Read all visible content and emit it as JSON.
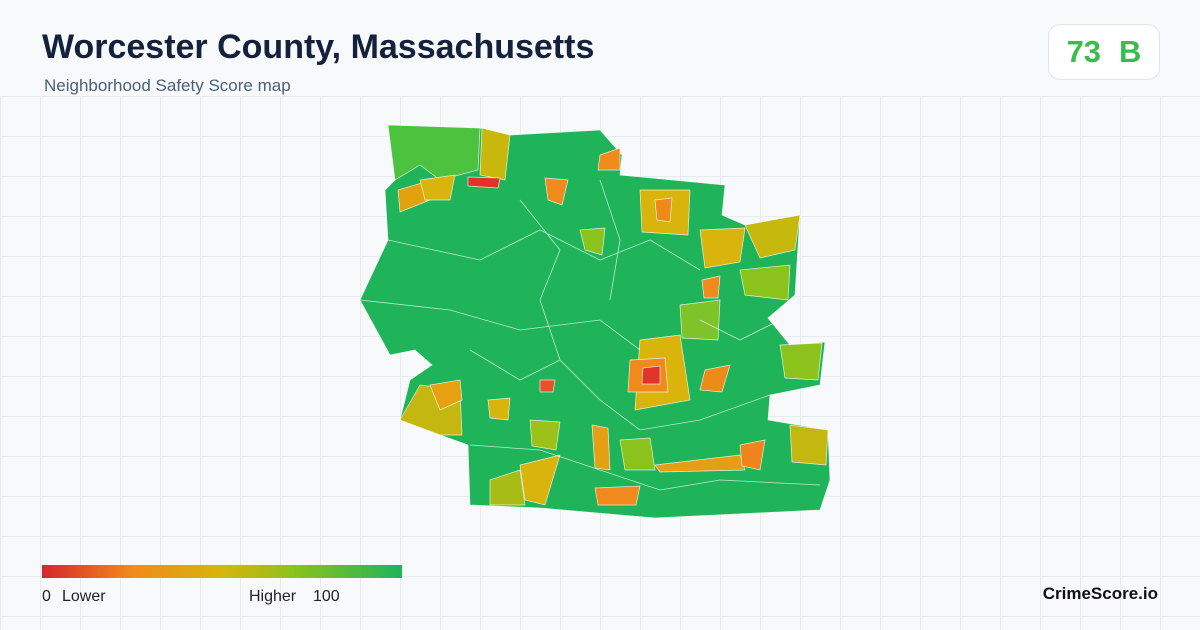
{
  "header": {
    "title": "Worcester County, Massachusetts",
    "subtitle": "Neighborhood Safety Score map"
  },
  "score": {
    "value": 73,
    "grade": "B"
  },
  "legend": {
    "min": 0,
    "min_label": "Lower",
    "max_label": "Higher",
    "max": 100
  },
  "brand": "CrimeScore.io"
}
